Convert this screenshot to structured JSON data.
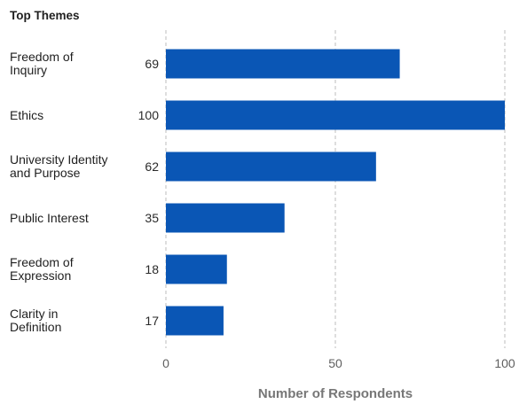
{
  "chart_data": {
    "type": "bar",
    "orientation": "horizontal",
    "title": "Top Themes",
    "categories": [
      [
        "Freedom of",
        "Inquiry"
      ],
      [
        "Ethics"
      ],
      [
        "University Identity",
        "and Purpose"
      ],
      [
        "Public Interest"
      ],
      [
        "Freedom of",
        "Expression"
      ],
      [
        "Clarity in",
        "Definition"
      ]
    ],
    "values": [
      69,
      100,
      62,
      35,
      18,
      17
    ],
    "xlabel": "Number of Respondents",
    "xlim": [
      0,
      100
    ],
    "xticks": [
      0,
      50,
      100
    ],
    "grid": true,
    "bar_color": "#0a56b5"
  }
}
